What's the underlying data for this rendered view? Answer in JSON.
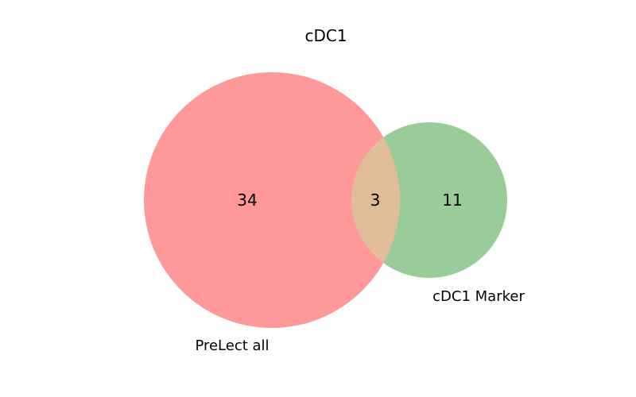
{
  "diagram": {
    "type": "venn2",
    "title": "cDC1",
    "sets": [
      {
        "name": "PreLect all",
        "color": "#ff9999"
      },
      {
        "name": "cDC1 Marker",
        "color": "#99cc99"
      }
    ],
    "counts": {
      "only_a": "34",
      "intersection": "3",
      "only_b": "11"
    },
    "intersection_color": "#e0bc99"
  }
}
